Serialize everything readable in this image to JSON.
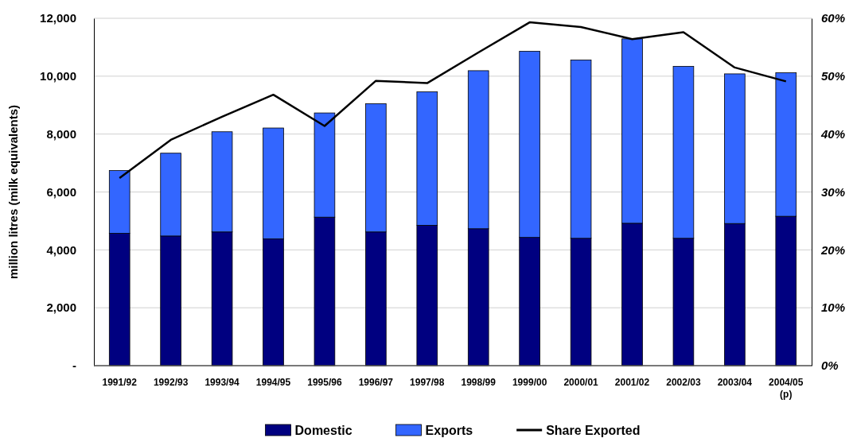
{
  "chart_data": {
    "type": "bar",
    "stacked": true,
    "ylabel": "million litres (milk equivalents)",
    "categories": [
      "1991/92",
      "1992/93",
      "1993/94",
      "1994/95",
      "1995/96",
      "1996/97",
      "1997/98",
      "1998/99",
      "1999/00",
      "2000/01",
      "2001/02",
      "2002/03",
      "2003/04",
      "2004/05 (p)"
    ],
    "series": [
      {
        "name": "Domestic",
        "color": "#000080",
        "values": [
          4570,
          4480,
          4620,
          4380,
          5130,
          4620,
          4850,
          4730,
          4430,
          4400,
          4920,
          4400,
          4910,
          5160
        ]
      },
      {
        "name": "Exports",
        "color": "#3366ff",
        "values": [
          2170,
          2860,
          3460,
          3830,
          3600,
          4430,
          4610,
          5460,
          6430,
          6160,
          6370,
          5940,
          5170,
          4960
        ]
      },
      {
        "name": "Share Exported",
        "type": "line",
        "axis": "y2",
        "color": "#000000",
        "values": [
          32.4,
          39.0,
          43.0,
          46.8,
          41.4,
          49.2,
          48.8,
          54.1,
          59.3,
          58.5,
          56.4,
          57.6,
          51.5,
          49.1
        ]
      }
    ],
    "ylim": [
      0,
      12000
    ],
    "yticks": [
      {
        "value": 0,
        "label": "-"
      },
      {
        "value": 2000,
        "label": "2,000"
      },
      {
        "value": 4000,
        "label": "4,000"
      },
      {
        "value": 6000,
        "label": "6,000"
      },
      {
        "value": 8000,
        "label": "8,000"
      },
      {
        "value": 10000,
        "label": "10,000"
      },
      {
        "value": 12000,
        "label": "12,000"
      }
    ],
    "y2lim": [
      0,
      60
    ],
    "y2ticks": [
      {
        "value": 0,
        "label": "0%"
      },
      {
        "value": 10,
        "label": "10%"
      },
      {
        "value": 20,
        "label": "20%"
      },
      {
        "value": 30,
        "label": "30%"
      },
      {
        "value": 40,
        "label": "40%"
      },
      {
        "value": 50,
        "label": "50%"
      },
      {
        "value": 60,
        "label": "60%"
      }
    ],
    "grid": "y",
    "legend": "bottom",
    "marker": "none",
    "line_style": "solid"
  }
}
